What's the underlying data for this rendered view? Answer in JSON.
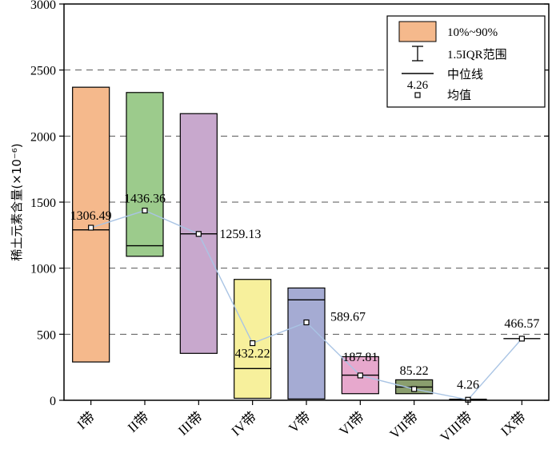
{
  "chart_data": {
    "type": "box",
    "ylabel": "稀土元素含量(×10⁻⁶)",
    "ylim": [
      0,
      3000
    ],
    "yticks": [
      0,
      500,
      1000,
      1500,
      2000,
      2500,
      3000
    ],
    "grid": "horizontal-dashed",
    "legend_position": "top-right",
    "categories": [
      "I带",
      "II带",
      "III带",
      "IV带",
      "V带",
      "VI带",
      "VII带",
      "VIII带",
      "IX带"
    ],
    "boxes": [
      {
        "category": "I带",
        "p10": 290,
        "p90": 2370,
        "median": 1290,
        "mean": 1306.49,
        "mean_label": "1306.49",
        "color": "#f5b98c"
      },
      {
        "category": "II带",
        "p10": 1090,
        "p90": 2330,
        "median": 1170,
        "mean": 1436.36,
        "mean_label": "1436.36",
        "color": "#9ccb8c"
      },
      {
        "category": "III带",
        "p10": 355,
        "p90": 2170,
        "median": 1260,
        "mean": 1259.13,
        "mean_label": "1259.13",
        "color": "#c8a8cd"
      },
      {
        "category": "IV带",
        "p10": 15,
        "p90": 915,
        "median": 240,
        "mean": 432.22,
        "mean_label": "432.22",
        "color": "#f7f09c"
      },
      {
        "category": "V带",
        "p10": 10,
        "p90": 850,
        "median": 760,
        "mean": 589.67,
        "mean_label": "589.67",
        "color": "#a5abd3"
      },
      {
        "category": "VI带",
        "p10": 50,
        "p90": 330,
        "median": 190,
        "mean": 187.81,
        "mean_label": "187.81",
        "color": "#e7a8cd"
      },
      {
        "category": "VII带",
        "p10": 50,
        "p90": 155,
        "median": 100,
        "mean": 85.22,
        "mean_label": "85.22",
        "color": "#8a9e6e"
      },
      {
        "category": "VIII带",
        "p10": 2,
        "p90": 8,
        "median": 4.26,
        "mean": 4.26,
        "mean_label": "4.26",
        "color": "#bbbbbb"
      },
      {
        "category": "IX带",
        "p10": 466.57,
        "p90": 466.57,
        "median": 466.57,
        "mean": 466.57,
        "mean_label": "466.57",
        "color": "#000000"
      }
    ],
    "mean_line_color": "#a9c4e4",
    "legend": {
      "box_label": "10%~90%",
      "box_color": "#f5b98c",
      "whisker_label": "1.5IQR范围",
      "median_label": "中位线",
      "mean_label": "均值",
      "mean_example": "4.26"
    }
  }
}
